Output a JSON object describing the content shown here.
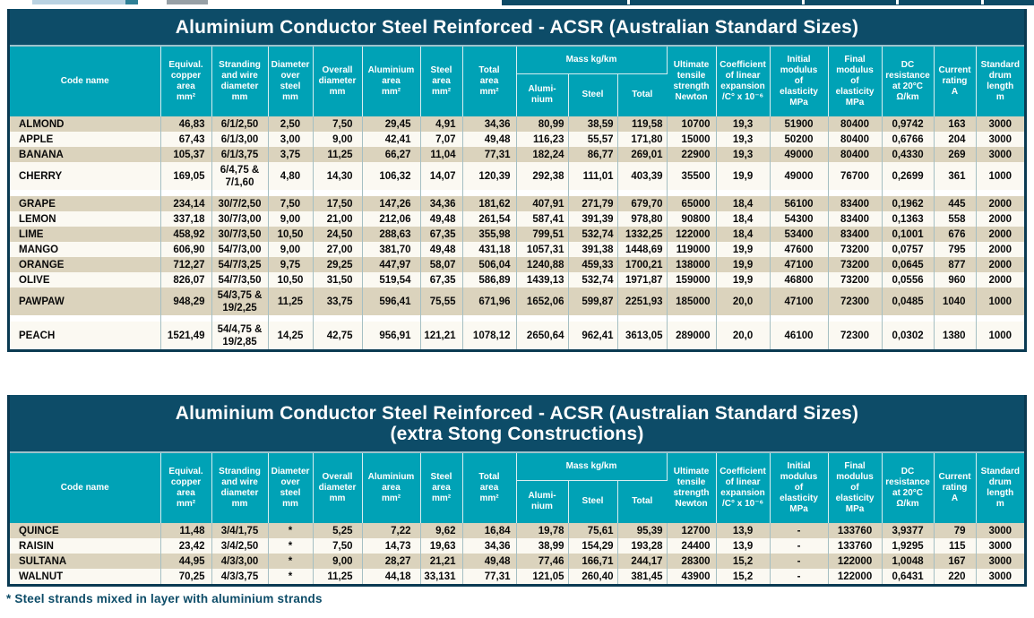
{
  "page": {
    "footnote": "* Steel strands mixed in layer with aluminium strands"
  },
  "colors": {
    "title_band": "#0d4c68",
    "header_teal": "#00a2b6",
    "row_tan": "#dbd3bd",
    "row_white": "#fbf9f2",
    "grid_line": "#a5bfc3",
    "outer_border": "#0a3a52",
    "footnote_navy": "#0d4c68"
  },
  "header_labels": {
    "code_name": "Code name",
    "equiv_copper": "Equival.\ncopper\narea\nmm²",
    "stranding": "Stranding\nand wire\ndiameter\nmm",
    "diam_over_steel": "Diameter\nover\nsteel\nmm",
    "overall_diam": "Overall\ndiameter\nmm",
    "alu_area": "Aluminium\narea\nmm²",
    "steel_area": "Steel\narea\nmm²",
    "total_area": "Total\narea\nmm²",
    "mass_group": "Mass kg/km",
    "mass_alu": "Alumi-\nnium",
    "mass_steel": "Steel",
    "mass_total": "Total",
    "uts": "Ultimate\ntensile\nstrength\nNewton",
    "coeff": "Coefficient\nof linear\nexpansion\n/C° x 10⁻⁶",
    "init_mod": "Initial\nmodulus\nof\nelasticity\nMPa",
    "final_mod": "Final\nmodulus\nof\nelasticity\nMPa",
    "dc_res": "DC\nresistance\nat 20°C\nΩ/km",
    "current": "Current\nrating\nA",
    "drum": "Standard\ndrum\nlength\nm"
  },
  "table1": {
    "title": "Aluminium Conductor Steel Reinforced - ACSR (Australian Standard Sizes)",
    "rows": [
      {
        "code": "ALMOND",
        "shade": "tan",
        "cells": [
          "46,83",
          "6/1/2,50",
          "2,50",
          "7,50",
          "29,45",
          "4,91",
          "34,36",
          "80,99",
          "38,59",
          "119,58",
          "10700",
          "19,3",
          "51900",
          "80400",
          "0,9742",
          "163",
          "3000"
        ]
      },
      {
        "code": "APPLE",
        "shade": "white",
        "cells": [
          "67,43",
          "6/1/3,00",
          "3,00",
          "9,00",
          "42,41",
          "7,07",
          "49,48",
          "116,23",
          "55,57",
          "171,80",
          "15000",
          "19,3",
          "50200",
          "80400",
          "0,6766",
          "204",
          "3000"
        ]
      },
      {
        "code": "BANANA",
        "shade": "tan",
        "cells": [
          "105,37",
          "6/1/3,75",
          "3,75",
          "11,25",
          "66,27",
          "11,04",
          "77,31",
          "182,24",
          "86,77",
          "269,01",
          "22900",
          "19,3",
          "49000",
          "80400",
          "0,4330",
          "269",
          "3000"
        ]
      },
      {
        "code": "CHERRY",
        "shade": "white",
        "cells": [
          "169,05",
          "6/4,75 &\n7/1,60",
          "4,80",
          "14,30",
          "106,32",
          "14,07",
          "120,39",
          "292,38",
          "111,01",
          "403,39",
          "35500",
          "19,9",
          "49000",
          "76700",
          "0,2699",
          "361",
          "1000"
        ]
      },
      {
        "spacer": true
      },
      {
        "code": "GRAPE",
        "shade": "tan",
        "cells": [
          "234,14",
          "30/7/2,50",
          "7,50",
          "17,50",
          "147,26",
          "34,36",
          "181,62",
          "407,91",
          "271,79",
          "679,70",
          "65000",
          "18,4",
          "56100",
          "83400",
          "0,1962",
          "445",
          "2000"
        ]
      },
      {
        "code": "LEMON",
        "shade": "white",
        "cells": [
          "337,18",
          "30/7/3,00",
          "9,00",
          "21,00",
          "212,06",
          "49,48",
          "261,54",
          "587,41",
          "391,39",
          "978,80",
          "90800",
          "18,4",
          "54300",
          "83400",
          "0,1363",
          "558",
          "2000"
        ]
      },
      {
        "code": "LIME",
        "shade": "tan",
        "cells": [
          "458,92",
          "30/7/3,50",
          "10,50",
          "24,50",
          "288,63",
          "67,35",
          "355,98",
          "799,51",
          "532,74",
          "1332,25",
          "122000",
          "18,4",
          "53400",
          "83400",
          "0,1001",
          "676",
          "2000"
        ]
      },
      {
        "code": "MANGO",
        "shade": "white",
        "cells": [
          "606,90",
          "54/7/3,00",
          "9,00",
          "27,00",
          "381,70",
          "49,48",
          "431,18",
          "1057,31",
          "391,38",
          "1448,69",
          "119000",
          "19,9",
          "47600",
          "73200",
          "0,0757",
          "795",
          "2000"
        ]
      },
      {
        "code": "ORANGE",
        "shade": "tan",
        "cells": [
          "712,27",
          "54/7/3,25",
          "9,75",
          "29,25",
          "447,97",
          "58,07",
          "506,04",
          "1240,88",
          "459,33",
          "1700,21",
          "138000",
          "19,9",
          "47100",
          "73200",
          "0,0645",
          "877",
          "2000"
        ]
      },
      {
        "code": "OLIVE",
        "shade": "white",
        "cells": [
          "826,07",
          "54/7/3,50",
          "10,50",
          "31,50",
          "519,54",
          "67,35",
          "586,89",
          "1439,13",
          "532,74",
          "1971,87",
          "159000",
          "19,9",
          "46800",
          "73200",
          "0,0556",
          "960",
          "2000"
        ]
      },
      {
        "code": "PAWPAW",
        "shade": "tan",
        "cells": [
          "948,29",
          "54/3,75 &\n19/2,25",
          "11,25",
          "33,75",
          "596,41",
          "75,55",
          "671,96",
          "1652,06",
          "599,87",
          "2251,93",
          "185000",
          "20,0",
          "47100",
          "72300",
          "0,0485",
          "1040",
          "1000"
        ]
      },
      {
        "spacer": true
      },
      {
        "code": "PEACH",
        "shade": "white",
        "cells": [
          "1521,49",
          "54/4,75 &\n19/2,85",
          "14,25",
          "42,75",
          "956,91",
          "121,21",
          "1078,12",
          "2650,64",
          "962,41",
          "3613,05",
          "289000",
          "20,0",
          "46100",
          "72300",
          "0,0302",
          "1380",
          "1000"
        ]
      }
    ]
  },
  "table2": {
    "title_line1": "Aluminium Conductor Steel Reinforced - ACSR (Australian Standard Sizes)",
    "title_line2": "(extra Stong Constructions)",
    "rows": [
      {
        "code": "QUINCE",
        "shade": "tan",
        "cells": [
          "11,48",
          "3/4/1,75",
          "*",
          "5,25",
          "7,22",
          "9,62",
          "16,84",
          "19,78",
          "75,61",
          "95,39",
          "12700",
          "13,9",
          "-",
          "133760",
          "3,9377",
          "79",
          "3000"
        ]
      },
      {
        "code": "RAISIN",
        "shade": "white",
        "cells": [
          "23,42",
          "3/4/2,50",
          "*",
          "7,50",
          "14,73",
          "19,63",
          "34,36",
          "38,99",
          "154,29",
          "193,28",
          "24400",
          "13,9",
          "-",
          "133760",
          "1,9295",
          "115",
          "3000"
        ]
      },
      {
        "code": "SULTANA",
        "shade": "tan",
        "cells": [
          "44,95",
          "4/3/3,00",
          "*",
          "9,00",
          "28,27",
          "21,21",
          "49,48",
          "77,46",
          "166,71",
          "244,17",
          "28300",
          "15,2",
          "-",
          "122000",
          "1,0048",
          "167",
          "3000"
        ]
      },
      {
        "code": "WALNUT",
        "shade": "white",
        "cells": [
          "70,25",
          "4/3/3,75",
          "*",
          "11,25",
          "44,18",
          "33,131",
          "77,31",
          "121,05",
          "260,40",
          "381,45",
          "43900",
          "15,2",
          "-",
          "122000",
          "0,6431",
          "220",
          "3000"
        ]
      }
    ]
  }
}
